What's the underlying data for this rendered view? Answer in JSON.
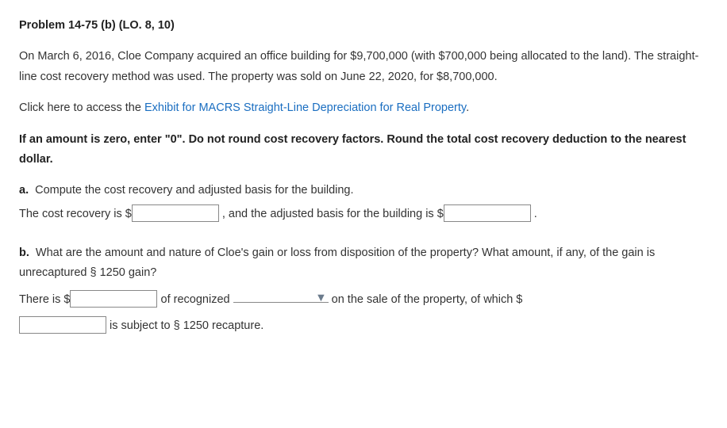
{
  "heading": "Problem 14-75 (b) (LO. 8, 10)",
  "intro": "On March 6, 2016, Cloe Company acquired an office building for $9,700,000 (with $700,000 being allocated to the land). The straight-line cost recovery method was used. The property was sold on June 22, 2020, for $8,700,000.",
  "link_line_prefix": "Click here to access the ",
  "link_text": "Exhibit for MACRS Straight-Line Depreciation for Real Property",
  "link_line_suffix": ".",
  "instruction": "If an amount is zero, enter \"0\". Do not round cost recovery factors. Round the total cost recovery deduction to the nearest dollar.",
  "parts": {
    "a": {
      "label": "a.",
      "question": "Compute the cost recovery and adjusted basis for the building.",
      "answer_pre": "The cost recovery is $",
      "answer_mid": " , and the adjusted basis for the building is $",
      "answer_post": " ."
    },
    "b": {
      "label": "b.",
      "question": "What are the amount and nature of Cloe's gain or loss from disposition of the property? What amount, if any, of the gain is unrecaptured § 1250 gain?",
      "line1_pre": "There is $",
      "line1_mid": " of recognized ",
      "line1_post": " on the sale of the property, of which $",
      "line2_post": " is subject to § 1250 recapture."
    }
  },
  "inputs": {
    "cost_recovery": "",
    "adjusted_basis": "",
    "recognized_amount": "",
    "nature_select": "",
    "recapture_amount": ""
  }
}
